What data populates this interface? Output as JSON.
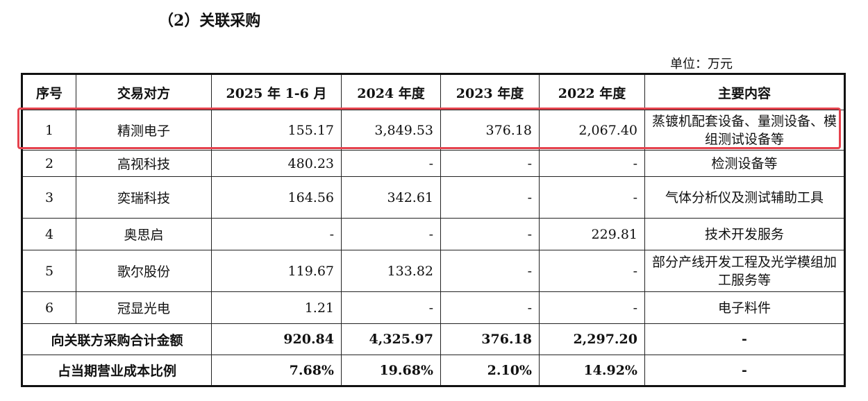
{
  "title": "（2）关联采购",
  "unit": "单位：万元",
  "headers": [
    "序号",
    "交易对方",
    "2025 年 1-6 月",
    "2024 年度",
    "2023 年度",
    "2022 年度",
    "主要内容"
  ],
  "rows": [
    [
      "1",
      "精测电子",
      "155.17",
      "3,849.53",
      "376.18",
      "2,067.40",
      "蒸镀机配套设备、量测设备、模组测试设备等"
    ],
    [
      "2",
      "高视科技",
      "480.23",
      "-",
      "-",
      "-",
      "检测设备等"
    ],
    [
      "3",
      "奕瑞科技",
      "164.56",
      "342.61",
      "-",
      "-",
      "气体分析仪及测试辅助工具"
    ],
    [
      "4",
      "奥思启",
      "-",
      "-",
      "-",
      "229.81",
      "技术开发服务"
    ],
    [
      "5",
      "歌尔股份",
      "119.67",
      "133.82",
      "-",
      "-",
      "部分产线开发工程及光学模组加工服务等"
    ],
    [
      "6",
      "冠显光电",
      "1.21",
      "-",
      "-",
      "-",
      "电子料件"
    ]
  ],
  "total": [
    "向关联方采购合计金额",
    "920.84",
    "4,325.97",
    "376.18",
    "2,297.20",
    "-"
  ],
  "ratio": [
    "占当期营业成本比例",
    "7.68%",
    "19.68%",
    "2.10%",
    "14.92%",
    "-"
  ],
  "highlight_color": "#e5424d"
}
